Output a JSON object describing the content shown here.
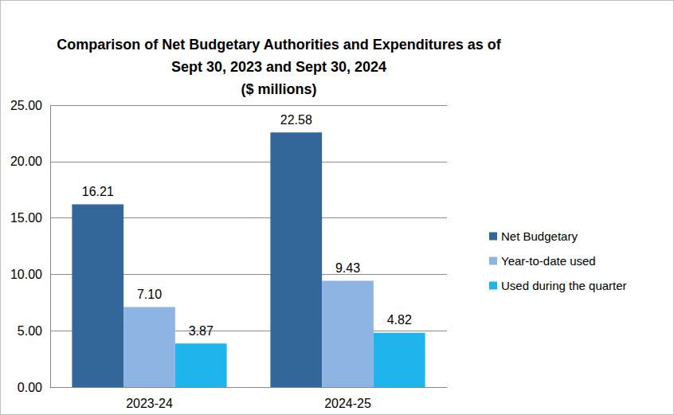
{
  "chart_data": {
    "type": "bar",
    "title": "Comparison of Net Budgetary Authorities and Expenditures as of\nSept 30, 2023 and Sept 30, 2024\n($ millions)",
    "categories": [
      "2023-24",
      "2024-25"
    ],
    "series": [
      {
        "name": "Net Budgetary",
        "color": "#336699",
        "values": [
          16.21,
          22.58
        ],
        "value_labels": [
          "16.21",
          "22.58"
        ]
      },
      {
        "name": "Year-to-date used",
        "color": "#8eb4e3",
        "values": [
          7.1,
          9.43
        ],
        "value_labels": [
          "7.10",
          "9.43"
        ]
      },
      {
        "name": "Used during the quarter",
        "color": "#1fb4ec",
        "values": [
          3.87,
          4.82
        ],
        "value_labels": [
          "3.87",
          "4.82"
        ]
      }
    ],
    "ylim": [
      0,
      25
    ],
    "yticks": [
      {
        "value": 0,
        "label": "0.00"
      },
      {
        "value": 5,
        "label": "5.00"
      },
      {
        "value": 10,
        "label": "10.00"
      },
      {
        "value": 15,
        "label": "15.00"
      },
      {
        "value": 20,
        "label": "20.00"
      },
      {
        "value": 25,
        "label": "25.00"
      }
    ],
    "grid": true,
    "legend": "right",
    "data_labels": true
  }
}
